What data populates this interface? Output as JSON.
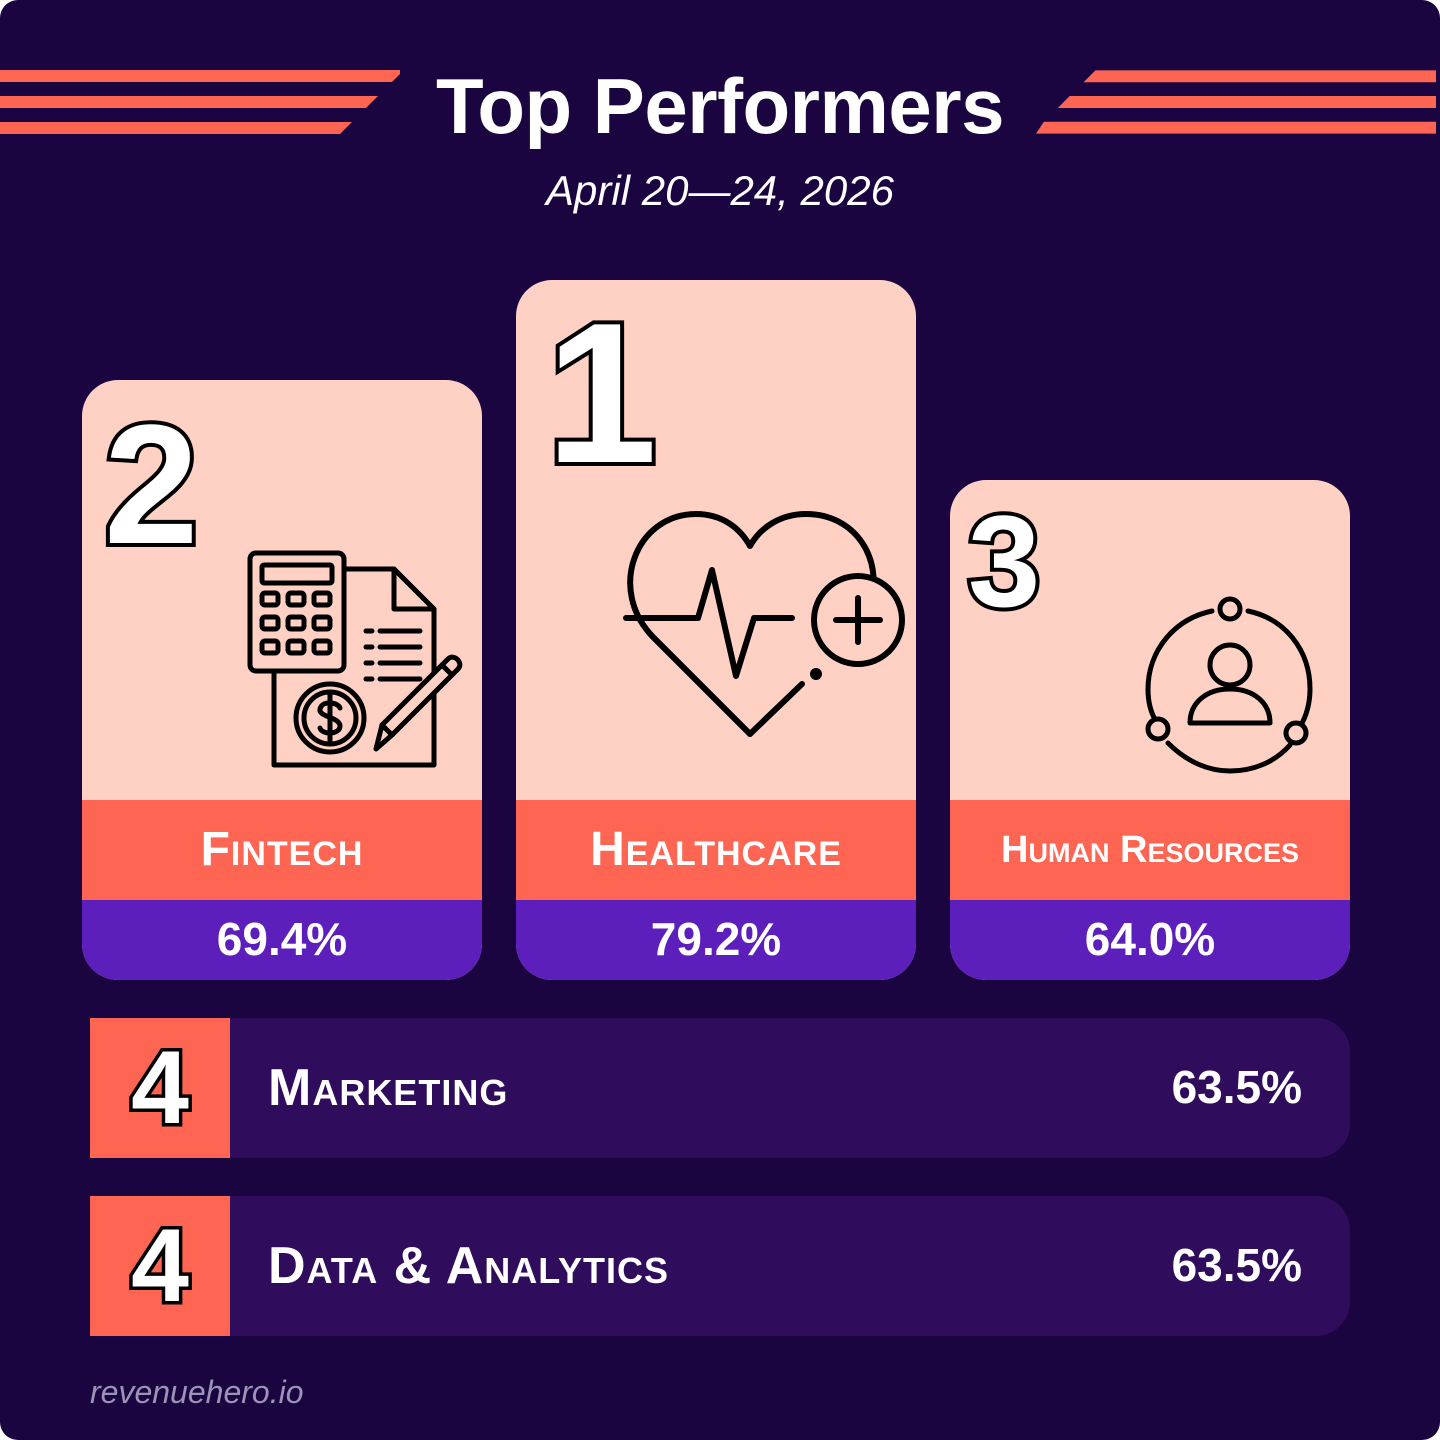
{
  "header": {
    "title": "Top Performers",
    "date_range": "April 20—24, 2026"
  },
  "podium": [
    {
      "rank": "2",
      "name": "Fintech",
      "value": "69.4%",
      "icon": "calculator-invoice-icon"
    },
    {
      "rank": "1",
      "name": "Healthcare",
      "value": "79.2%",
      "icon": "heart-pulse-plus-icon"
    },
    {
      "rank": "3",
      "name": "Human Resources",
      "value": "64.0%",
      "icon": "user-network-icon"
    }
  ],
  "rows": [
    {
      "rank": "4",
      "name": "Marketing",
      "value": "63.5%"
    },
    {
      "rank": "4",
      "name": "Data & Analytics",
      "value": "63.5%"
    }
  ],
  "footer": {
    "site": "revenuehero.io"
  },
  "colors": {
    "background": "#1a0540",
    "accent": "#fe6553",
    "card": "#ffd0c4",
    "value_band": "#5c1fbb",
    "row_bg": "#2f0d5c"
  }
}
